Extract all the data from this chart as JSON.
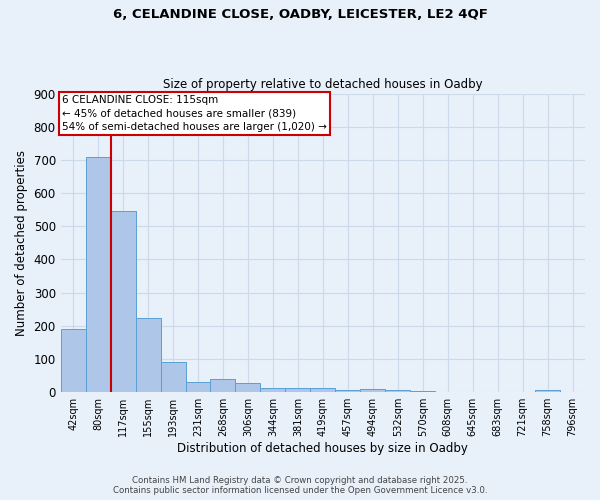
{
  "title_line1": "6, CELANDINE CLOSE, OADBY, LEICESTER, LE2 4QF",
  "title_line2": "Size of property relative to detached houses in Oadby",
  "xlabel": "Distribution of detached houses by size in Oadby",
  "ylabel": "Number of detached properties",
  "categories": [
    "42sqm",
    "80sqm",
    "117sqm",
    "155sqm",
    "193sqm",
    "231sqm",
    "268sqm",
    "306sqm",
    "344sqm",
    "381sqm",
    "419sqm",
    "457sqm",
    "494sqm",
    "532sqm",
    "570sqm",
    "608sqm",
    "645sqm",
    "683sqm",
    "721sqm",
    "758sqm",
    "796sqm"
  ],
  "values": [
    190,
    710,
    545,
    225,
    92,
    30,
    40,
    27,
    13,
    12,
    12,
    8,
    9,
    8,
    5,
    0,
    0,
    0,
    0,
    8,
    0
  ],
  "bar_color": "#aec6e8",
  "bar_edge_color": "#5a9fd4",
  "property_index": 2,
  "annotation_title": "6 CELANDINE CLOSE: 115sqm",
  "annotation_line2": "← 45% of detached houses are smaller (839)",
  "annotation_line3": "54% of semi-detached houses are larger (1,020) →",
  "annotation_box_color": "#ffffff",
  "annotation_box_edge": "#cc0000",
  "red_line_color": "#cc0000",
  "ylim": [
    0,
    900
  ],
  "yticks": [
    0,
    100,
    200,
    300,
    400,
    500,
    600,
    700,
    800,
    900
  ],
  "grid_color": "#ccd9e8",
  "background_color": "#e8f0fa",
  "footer_line1": "Contains HM Land Registry data © Crown copyright and database right 2025.",
  "footer_line2": "Contains public sector information licensed under the Open Government Licence v3.0."
}
